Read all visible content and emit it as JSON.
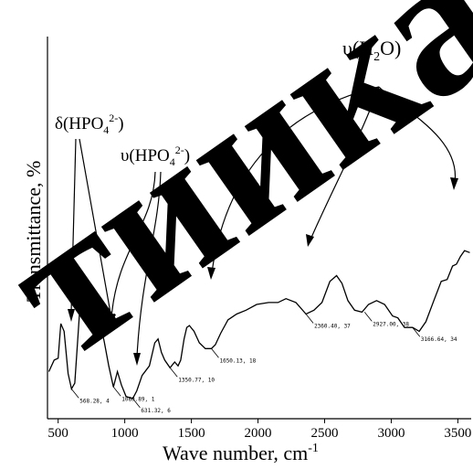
{
  "chart_data": {
    "type": "line",
    "xlabel": "Wave number, cm",
    "xlabel_sup": "-1",
    "ylabel": "Transmittance, %",
    "xlim": [
      420,
      3600
    ],
    "ylim": [
      0,
      100
    ],
    "x_ticks": [
      "500",
      "1000",
      "1500",
      "2000",
      "2500",
      "3000",
      "3500"
    ],
    "grid": false,
    "series": [
      {
        "points": [
          [
            430,
            15
          ],
          [
            470,
            21
          ],
          [
            500,
            22
          ],
          [
            520,
            40
          ],
          [
            545,
            36
          ],
          [
            575,
            14
          ],
          [
            600,
            6
          ],
          [
            625,
            9
          ],
          [
            650,
            35
          ],
          [
            680,
            66
          ],
          [
            715,
            62
          ],
          [
            755,
            53
          ],
          [
            805,
            43
          ],
          [
            845,
            31
          ],
          [
            880,
            18
          ],
          [
            915,
            7
          ],
          [
            945,
            15
          ],
          [
            975,
            8
          ],
          [
            1010,
            2
          ],
          [
            1060,
            1
          ],
          [
            1090,
            5
          ],
          [
            1130,
            13
          ],
          [
            1185,
            18
          ],
          [
            1225,
            30
          ],
          [
            1250,
            32
          ],
          [
            1275,
            25
          ],
          [
            1300,
            21
          ],
          [
            1340,
            17
          ],
          [
            1375,
            20
          ],
          [
            1400,
            18
          ],
          [
            1420,
            21
          ],
          [
            1445,
            32
          ],
          [
            1465,
            38
          ],
          [
            1485,
            39
          ],
          [
            1520,
            36
          ],
          [
            1560,
            30
          ],
          [
            1605,
            27
          ],
          [
            1650,
            27
          ],
          [
            1680,
            29
          ],
          [
            1720,
            35
          ],
          [
            1775,
            42
          ],
          [
            1840,
            45
          ],
          [
            1910,
            47
          ],
          [
            1990,
            50
          ],
          [
            2080,
            51
          ],
          [
            2150,
            51
          ],
          [
            2210,
            53
          ],
          [
            2285,
            51
          ],
          [
            2360,
            45
          ],
          [
            2420,
            47
          ],
          [
            2480,
            51
          ],
          [
            2540,
            62
          ],
          [
            2590,
            65
          ],
          [
            2630,
            61
          ],
          [
            2675,
            52
          ],
          [
            2725,
            47
          ],
          [
            2780,
            46
          ],
          [
            2830,
            50
          ],
          [
            2890,
            52
          ],
          [
            2950,
            50
          ],
          [
            3010,
            44
          ],
          [
            3050,
            43
          ],
          [
            3100,
            38
          ],
          [
            3160,
            38
          ],
          [
            3210,
            36
          ],
          [
            3260,
            41
          ],
          [
            3320,
            52
          ],
          [
            3375,
            62
          ],
          [
            3420,
            63
          ],
          [
            3460,
            70
          ],
          [
            3490,
            71
          ],
          [
            3520,
            75
          ],
          [
            3550,
            78
          ],
          [
            3590,
            77
          ]
        ]
      }
    ],
    "peak_labels": [
      {
        "text": "568.28, 4",
        "x": 600,
        "y": 6
      },
      {
        "text": "1080.89, 1",
        "x": 915,
        "y": 7
      },
      {
        "text": "631.32, 6",
        "x": 1060,
        "y": 1
      },
      {
        "text": "1350.77, 10",
        "x": 1340,
        "y": 17
      },
      {
        "text": "1650.13, 18",
        "x": 1650,
        "y": 27
      },
      {
        "text": "2360.40, 37",
        "x": 2360,
        "y": 45
      },
      {
        "text": "2927.00, 38",
        "x": 2800,
        "y": 46
      },
      {
        "text": "3166.64, 34",
        "x": 3160,
        "y": 38
      }
    ],
    "annotations": [
      {
        "base": "δ(HPO",
        "sub": "4",
        "sup": "2-",
        "tail": ")"
      },
      {
        "base": "υ(HPO",
        "sub": "4",
        "sup": "2-",
        "tail": ")"
      },
      {
        "base": "υ(H",
        "sub": "2",
        "sup": "",
        "tail": "O)"
      }
    ]
  },
  "watermark_text": "тиикал"
}
